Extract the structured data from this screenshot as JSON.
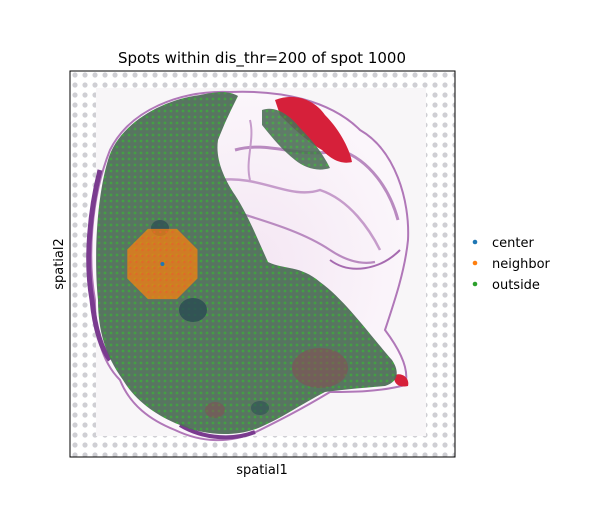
{
  "chart_data": {
    "type": "scatter",
    "title": "Spots within dis_thr=200 of spot 1000",
    "xlabel": "spatial1",
    "ylabel": "spatial2",
    "ticks_visible": false,
    "grid": false,
    "background": "tissue-image",
    "legend": {
      "placement": "right",
      "entries": [
        {
          "label": "center",
          "color": "#1f77b4"
        },
        {
          "label": "neighbor",
          "color": "#ff7f0e"
        },
        {
          "label": "outside",
          "color": "#2ca02c"
        }
      ]
    },
    "series": [
      {
        "name": "center",
        "color": "#1f77b4",
        "points": [
          [
            0.24,
            0.5
          ]
        ]
      },
      {
        "name": "neighbor",
        "color": "#ff7f0e",
        "region": "disk around center spot"
      },
      {
        "name": "outside",
        "color": "#2ca02c",
        "region": "remaining tissue spots"
      }
    ]
  },
  "colors": {
    "tissue_dark": "#4f6e59",
    "tissue_purple": "#9b57a8",
    "tissue_red": "#d6203a",
    "background_spot": "#cfcfd4"
  }
}
